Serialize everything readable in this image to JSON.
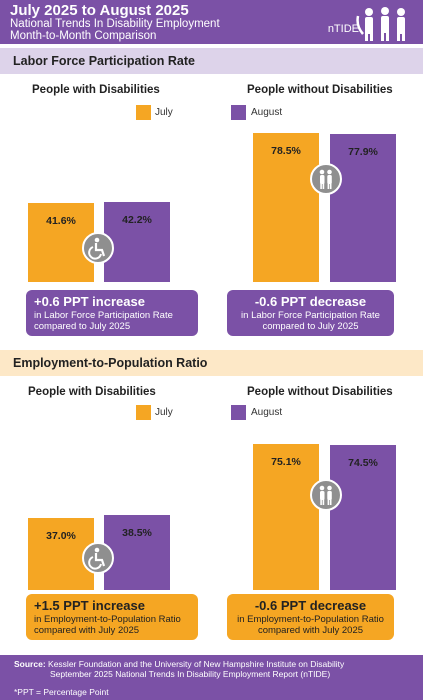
{
  "header": {
    "title": "July 2025 to August 2025",
    "subtitle_line1": "National Trends In Disability Employment",
    "subtitle_line2": "Month-to-Month Comparison",
    "logo_text": "nTIDE"
  },
  "colors": {
    "purple": "#7b51a6",
    "orange": "#f5a623",
    "lavender": "#ddd3ea",
    "peach": "#fde8c7",
    "icon_gray": "#8f8f8f"
  },
  "legend": {
    "july": "July",
    "august": "August"
  },
  "sections": [
    {
      "title": "Labor Force Participation Rate",
      "left_heading": "People with Disabilities",
      "right_heading": "People without Disabilities",
      "left_callout": {
        "big": "+0.6 PPT  increase",
        "line1": "in Labor Force Participation Rate",
        "line2": "compared to July 2025"
      },
      "right_callout": {
        "big": "-0.6 PPT  decrease",
        "line1": "in Labor Force Participation Rate",
        "line2": "compared to July 2025"
      }
    },
    {
      "title": "Employment-to-Population Ratio",
      "left_heading": "People with Disabilities",
      "right_heading": "People without Disabilities",
      "left_callout": {
        "big": "+1.5 PPT  increase",
        "line1": "in Employment-to-Population Ratio",
        "line2": "compared with July 2025"
      },
      "right_callout": {
        "big": "-0.6 PPT  decrease",
        "line1": "in Employment-to-Population Ratio",
        "line2": "compared with July 2025"
      }
    }
  ],
  "chart_data": [
    {
      "type": "bar",
      "title": "Labor Force Participation Rate",
      "categories": [
        "People with Disabilities",
        "People without Disabilities"
      ],
      "series": [
        {
          "name": "July",
          "values": [
            41.6,
            78.5
          ],
          "labels": [
            "41.6%",
            "78.5%"
          ]
        },
        {
          "name": "August",
          "values": [
            42.2,
            77.9
          ],
          "labels": [
            "42.2%",
            "77.9%"
          ]
        }
      ],
      "ylim": [
        0,
        100
      ],
      "legend": "top"
    },
    {
      "type": "bar",
      "title": "Employment-to-Population Ratio",
      "categories": [
        "People with Disabilities",
        "People without Disabilities"
      ],
      "series": [
        {
          "name": "July",
          "values": [
            37.0,
            75.1
          ],
          "labels": [
            "37.0%",
            "75.1%"
          ]
        },
        {
          "name": "August",
          "values": [
            38.5,
            74.5
          ],
          "labels": [
            "38.5%",
            "74.5%"
          ]
        }
      ],
      "ylim": [
        0,
        100
      ],
      "legend": "top"
    }
  ],
  "footer": {
    "source_label": "Source:",
    "source_line1": "Kessler Foundation and the University of New Hampshire Institute on Disability",
    "source_line2": "September 2025 National Trends In Disability Employment Report (nTIDE)",
    "ppt_note": "*PPT = Percentage Point"
  }
}
